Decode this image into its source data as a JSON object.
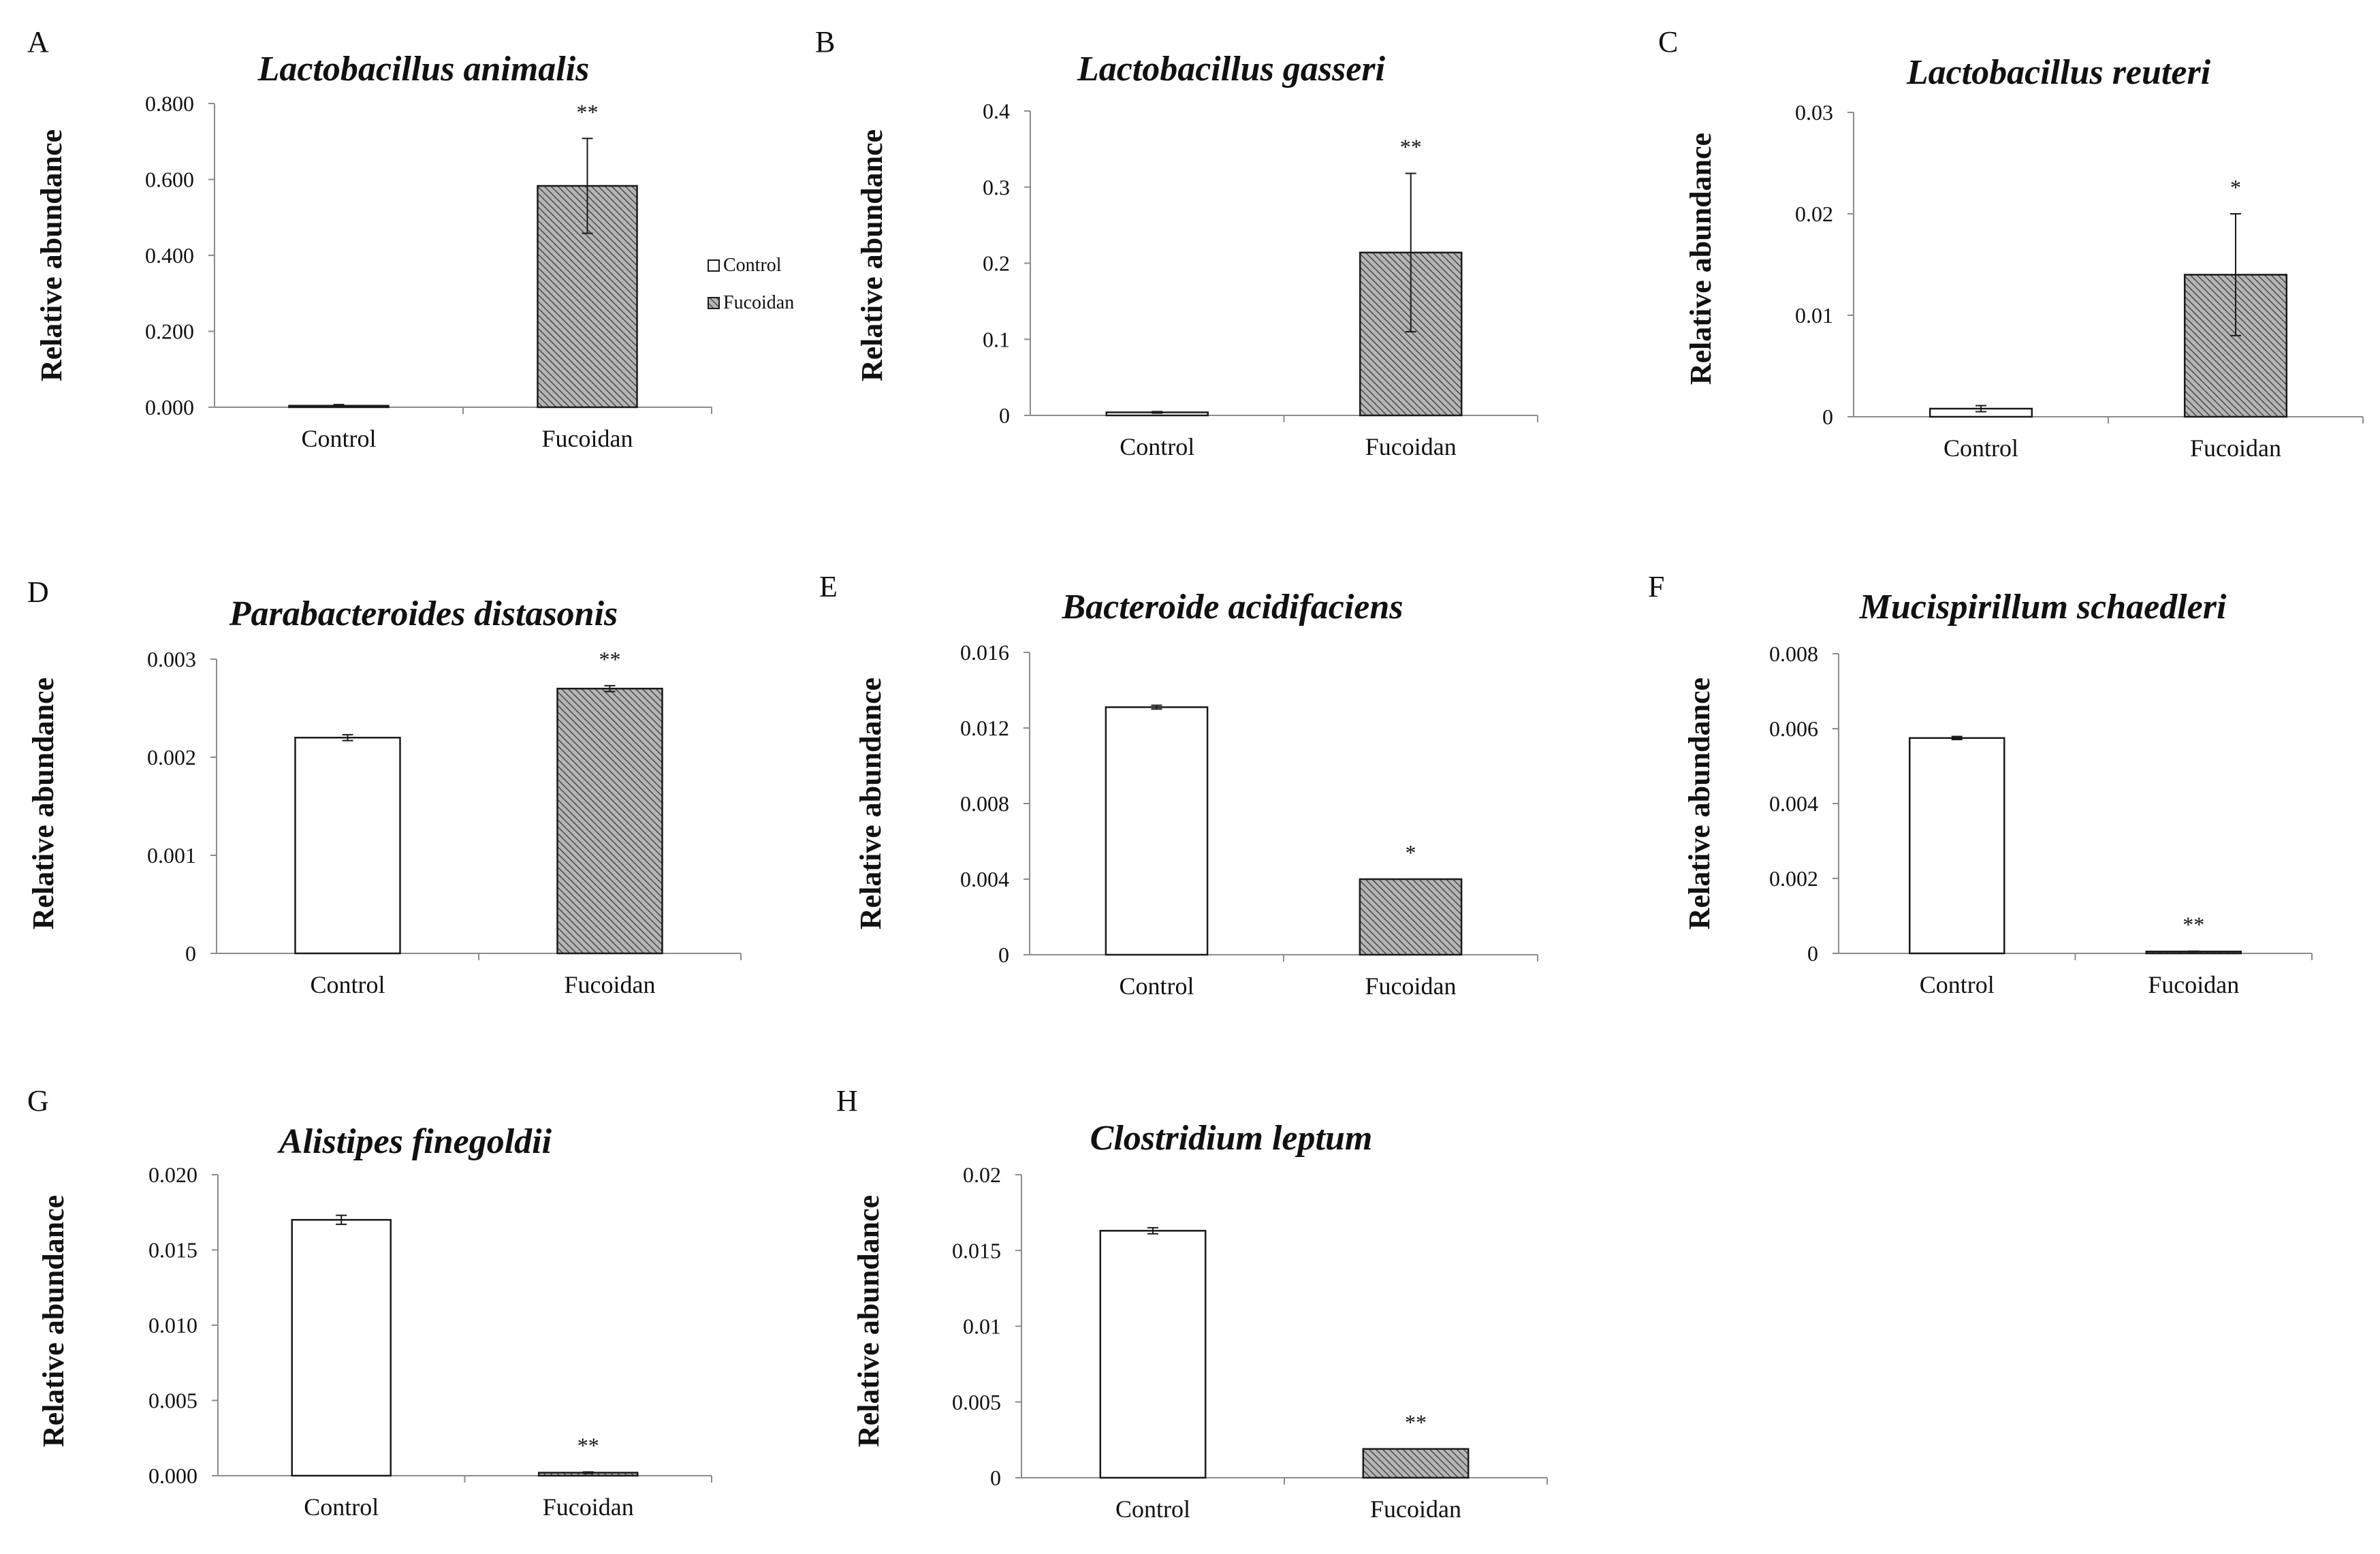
{
  "figure": {
    "legend": {
      "items": [
        {
          "label": "Control",
          "pattern": "none"
        },
        {
          "label": "Fucoidan",
          "pattern": "hatch"
        }
      ]
    }
  },
  "colors": {
    "axis": "#8c8c8c",
    "bar_stroke": "#1a1a1a",
    "control_fill": "#ffffff",
    "fucoidan_fill": "#b5b5b5",
    "hatch_line": "#4a4a4a",
    "text": "#111111"
  },
  "chart_data": [
    {
      "panel": "A",
      "type": "bar",
      "title": "Lactobacillus animalis",
      "ylabel": "Relative abundance",
      "xlabel": "",
      "categories": [
        "Control",
        "Fucoidan"
      ],
      "values": [
        0.004,
        0.583
      ],
      "errors": [
        0.003,
        0.125
      ],
      "significance": [
        "",
        "**"
      ],
      "ylim": [
        0,
        0.8
      ],
      "yticks": [
        0,
        0.2,
        0.4,
        0.6,
        0.8
      ],
      "ytick_labels": [
        "0.000",
        "0.200",
        "0.400",
        "0.600",
        "0.800"
      ]
    },
    {
      "panel": "B",
      "type": "bar",
      "title": "Lactobacillus gasseri",
      "ylabel": "Relative abundance",
      "xlabel": "",
      "categories": [
        "Control",
        "Fucoidan"
      ],
      "values": [
        0.004,
        0.214
      ],
      "errors": [
        0.001,
        0.104
      ],
      "significance": [
        "",
        "**"
      ],
      "ylim": [
        0,
        0.4
      ],
      "yticks": [
        0,
        0.1,
        0.2,
        0.3,
        0.4
      ],
      "ytick_labels": [
        "0",
        "0.1",
        "0.2",
        "0.3",
        "0.4"
      ]
    },
    {
      "panel": "C",
      "type": "bar",
      "title": "Lactobacillus reuteri",
      "ylabel": "Relative abundance",
      "xlabel": "",
      "categories": [
        "Control",
        "Fucoidan"
      ],
      "values": [
        0.0008,
        0.014
      ],
      "errors": [
        0.0003,
        0.006
      ],
      "significance": [
        "",
        "*"
      ],
      "ylim": [
        0,
        0.03
      ],
      "yticks": [
        0,
        0.01,
        0.02,
        0.03
      ],
      "ytick_labels": [
        "0",
        "0.01",
        "0.02",
        "0.03"
      ]
    },
    {
      "panel": "D",
      "type": "bar",
      "title": "Parabacteroides distasonis",
      "ylabel": "Relative abundance",
      "xlabel": "",
      "categories": [
        "Control",
        "Fucoidan"
      ],
      "values": [
        0.0022,
        0.0027
      ],
      "errors": [
        3e-05,
        3e-05
      ],
      "significance": [
        "",
        "**"
      ],
      "ylim": [
        0,
        0.003
      ],
      "yticks": [
        0,
        0.001,
        0.002,
        0.003
      ],
      "ytick_labels": [
        "0",
        "0.001",
        "0.002",
        "0.003"
      ]
    },
    {
      "panel": "E",
      "type": "bar",
      "title": "Bacteroide acidifaciens",
      "ylabel": "Relative abundance",
      "xlabel": "",
      "categories": [
        "Control",
        "Fucoidan"
      ],
      "values": [
        0.0131,
        0.004
      ],
      "errors": [
        0.0001,
        0.0
      ],
      "significance": [
        "",
        "*"
      ],
      "ylim": [
        0,
        0.016
      ],
      "yticks": [
        0,
        0.004,
        0.008,
        0.012,
        0.016
      ],
      "ytick_labels": [
        "0",
        "0.004",
        "0.008",
        "0.012",
        "0.016"
      ]
    },
    {
      "panel": "F",
      "type": "bar",
      "title": "Mucispirillum schaedleri",
      "ylabel": "Relative abundance",
      "xlabel": "",
      "categories": [
        "Control",
        "Fucoidan"
      ],
      "values": [
        0.00575,
        5e-05
      ],
      "errors": [
        4e-05,
        1e-05
      ],
      "significance": [
        "",
        "**"
      ],
      "ylim": [
        0,
        0.008
      ],
      "yticks": [
        0,
        0.002,
        0.004,
        0.006,
        0.008
      ],
      "ytick_labels": [
        "0",
        "0.002",
        "0.004",
        "0.006",
        "0.008"
      ]
    },
    {
      "panel": "G",
      "type": "bar",
      "title": "Alistipes finegoldii",
      "ylabel": "Relative abundance",
      "xlabel": "",
      "categories": [
        "Control",
        "Fucoidan"
      ],
      "values": [
        0.017,
        0.0002
      ],
      "errors": [
        0.0003,
        5e-05
      ],
      "significance": [
        "",
        "**"
      ],
      "ylim": [
        0,
        0.02
      ],
      "yticks": [
        0,
        0.005,
        0.01,
        0.015,
        0.02
      ],
      "ytick_labels": [
        "0.000",
        "0.005",
        "0.010",
        "0.015",
        "0.020"
      ]
    },
    {
      "panel": "H",
      "type": "bar",
      "title": "Clostridium leptum",
      "ylabel": "Relative abundance",
      "xlabel": "",
      "categories": [
        "Control",
        "Fucoidan"
      ],
      "values": [
        0.0163,
        0.0019
      ],
      "errors": [
        0.0002,
        0.0
      ],
      "significance": [
        "",
        "**"
      ],
      "ylim": [
        0,
        0.02
      ],
      "yticks": [
        0,
        0.005,
        0.01,
        0.015,
        0.02
      ],
      "ytick_labels": [
        "0",
        "0.005",
        "0.01",
        "0.015",
        "0.02"
      ]
    }
  ]
}
